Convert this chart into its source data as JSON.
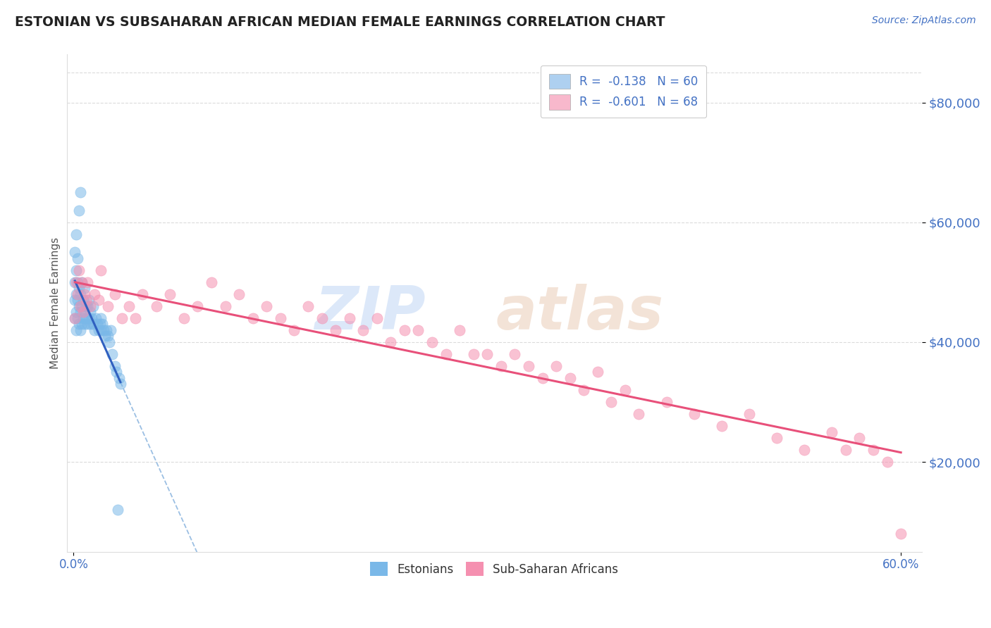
{
  "title": "ESTONIAN VS SUBSAHARAN AFRICAN MEDIAN FEMALE EARNINGS CORRELATION CHART",
  "source": "Source: ZipAtlas.com",
  "ylabel": "Median Female Earnings",
  "background_color": "#ffffff",
  "title_color": "#222222",
  "label_color": "#4472c4",
  "ytick_color": "#4472c4",
  "xtick_color": "#4472c4",
  "grid_color": "#cccccc",
  "xmin": -0.005,
  "xmax": 0.615,
  "ymin": 5000,
  "ymax": 88000,
  "yticks": [
    20000,
    40000,
    60000,
    80000
  ],
  "ytick_labels": [
    "$20,000",
    "$40,000",
    "$60,000",
    "$80,000"
  ],
  "xticks": [
    0.0,
    0.6
  ],
  "xtick_labels": [
    "0.0%",
    "60.0%"
  ],
  "series1_color": "#7ab8e8",
  "series2_color": "#f590b0",
  "line1_color": "#3060c0",
  "line2_color": "#e8507a",
  "dashed_line_color": "#90b8e0",
  "legend1_color": "#aed0f0",
  "legend2_color": "#f8b8cc",
  "legend_text_color": "#4472c4",
  "R1": -0.138,
  "N1": 60,
  "R2": -0.601,
  "N2": 68,
  "est_x": [
    0.001,
    0.001,
    0.001,
    0.001,
    0.002,
    0.002,
    0.002,
    0.002,
    0.002,
    0.003,
    0.003,
    0.003,
    0.003,
    0.004,
    0.004,
    0.004,
    0.004,
    0.005,
    0.005,
    0.005,
    0.005,
    0.006,
    0.006,
    0.006,
    0.007,
    0.007,
    0.008,
    0.008,
    0.008,
    0.009,
    0.009,
    0.01,
    0.01,
    0.011,
    0.011,
    0.012,
    0.012,
    0.013,
    0.014,
    0.014,
    0.015,
    0.016,
    0.017,
    0.018,
    0.019,
    0.02,
    0.02,
    0.021,
    0.022,
    0.023,
    0.024,
    0.025,
    0.026,
    0.027,
    0.028,
    0.03,
    0.031,
    0.032,
    0.033,
    0.034
  ],
  "est_y": [
    44000,
    47000,
    50000,
    55000,
    42000,
    45000,
    48000,
    52000,
    58000,
    44000,
    47000,
    50000,
    54000,
    43000,
    46000,
    49000,
    62000,
    42000,
    45000,
    48000,
    65000,
    43000,
    46000,
    50000,
    44000,
    47000,
    43000,
    45000,
    49000,
    44000,
    46000,
    43000,
    46000,
    44000,
    47000,
    43000,
    45000,
    44000,
    43000,
    46000,
    42000,
    44000,
    43000,
    42000,
    43000,
    42000,
    44000,
    43000,
    42000,
    41000,
    42000,
    41000,
    40000,
    42000,
    38000,
    36000,
    35000,
    12000,
    34000,
    33000
  ],
  "ssa_x": [
    0.001,
    0.002,
    0.003,
    0.004,
    0.005,
    0.006,
    0.007,
    0.008,
    0.009,
    0.01,
    0.012,
    0.015,
    0.018,
    0.02,
    0.025,
    0.03,
    0.035,
    0.04,
    0.045,
    0.05,
    0.06,
    0.07,
    0.08,
    0.09,
    0.1,
    0.11,
    0.12,
    0.13,
    0.14,
    0.15,
    0.16,
    0.17,
    0.18,
    0.19,
    0.2,
    0.21,
    0.22,
    0.23,
    0.24,
    0.25,
    0.26,
    0.27,
    0.28,
    0.29,
    0.3,
    0.31,
    0.32,
    0.33,
    0.34,
    0.35,
    0.36,
    0.37,
    0.38,
    0.39,
    0.4,
    0.41,
    0.43,
    0.45,
    0.47,
    0.49,
    0.51,
    0.53,
    0.55,
    0.56,
    0.57,
    0.58,
    0.59,
    0.6
  ],
  "ssa_y": [
    44000,
    50000,
    48000,
    52000,
    46000,
    50000,
    45000,
    48000,
    47000,
    50000,
    46000,
    48000,
    47000,
    52000,
    46000,
    48000,
    44000,
    46000,
    44000,
    48000,
    46000,
    48000,
    44000,
    46000,
    50000,
    46000,
    48000,
    44000,
    46000,
    44000,
    42000,
    46000,
    44000,
    42000,
    44000,
    42000,
    44000,
    40000,
    42000,
    42000,
    40000,
    38000,
    42000,
    38000,
    38000,
    36000,
    38000,
    36000,
    34000,
    36000,
    34000,
    32000,
    35000,
    30000,
    32000,
    28000,
    30000,
    28000,
    26000,
    28000,
    24000,
    22000,
    25000,
    22000,
    24000,
    22000,
    20000,
    8000
  ]
}
